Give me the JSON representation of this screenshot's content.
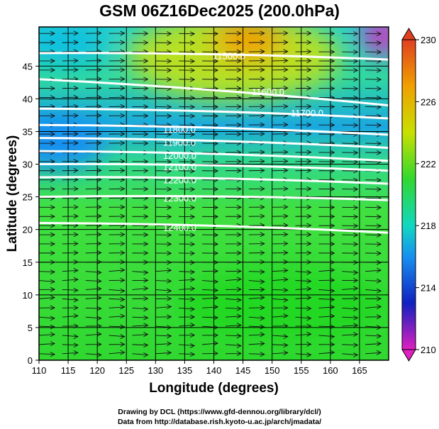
{
  "title": "GSM 06Z16Dec2025 (200.0hPa)",
  "xlabel": "Longitude (degrees)",
  "ylabel": "Latitude  (degrees)",
  "footer": {
    "line1": "Drawing by DCL (https://www.gfd-dennou.org/library/dcl/)",
    "line2": "Data from http://database.rish.kyoto-u.ac.jp/arch/jmadata/"
  },
  "chart_data": {
    "type": "map",
    "field": "temperature shading with geopotential height contours and wind streamlines",
    "xlim": [
      110,
      170
    ],
    "ylim": [
      0,
      51
    ],
    "xticks": [
      "110",
      "115",
      "120",
      "125",
      "130",
      "135",
      "140",
      "145",
      "150",
      "155",
      "160",
      "165"
    ],
    "yticks": [
      "0",
      "5",
      "10",
      "15",
      "20",
      "25",
      "30",
      "35",
      "40",
      "45"
    ],
    "colorbar": {
      "ticks": [
        "210",
        "214",
        "218",
        "222",
        "226",
        "230"
      ],
      "range": [
        210,
        230
      ]
    },
    "contours": [
      {
        "label": "11500.0",
        "lat_west": 47,
        "lat_east": 46
      },
      {
        "label": "11600.0",
        "lat_west": 43,
        "lat_east": 39
      },
      {
        "label": "11700.0",
        "lat_west": 38.5,
        "lat_east": 37
      },
      {
        "label": "11800.0",
        "lat_west": 36,
        "lat_east": 34.5
      },
      {
        "label": "11900.0",
        "lat_west": 34,
        "lat_east": 32.5
      },
      {
        "label": "12000.0",
        "lat_west": 32,
        "lat_east": 30.5
      },
      {
        "label": "12100.0",
        "lat_west": 30,
        "lat_east": 29
      },
      {
        "label": "12200.0",
        "lat_west": 28,
        "lat_east": 27
      },
      {
        "label": "12300.0",
        "lat_west": 25,
        "lat_east": 24.5
      },
      {
        "label": "12400.0",
        "lat_west": 21,
        "lat_east": 19.5
      }
    ]
  }
}
